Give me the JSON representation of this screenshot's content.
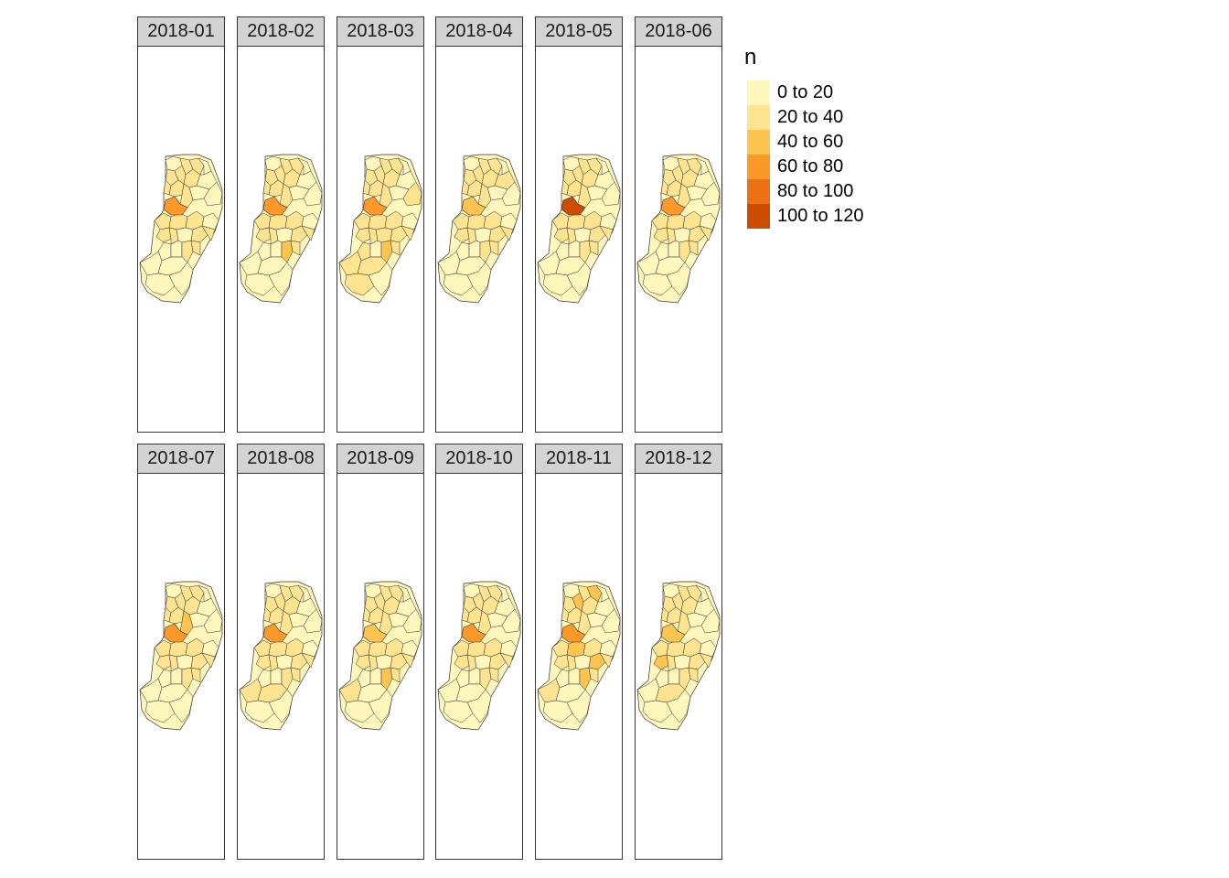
{
  "legend": {
    "title": "n",
    "classes": [
      {
        "label": "0 to 20",
        "color": "#FFF7BC"
      },
      {
        "label": "20 to 40",
        "color": "#FEE391"
      },
      {
        "label": "40 to 60",
        "color": "#FEC44F"
      },
      {
        "label": "60 to 80",
        "color": "#FE9929"
      },
      {
        "label": "80 to 100",
        "color": "#EC7014"
      },
      {
        "label": "100 to 120",
        "color": "#CC4C02"
      }
    ]
  },
  "panels": [
    {
      "label": "2018-01",
      "central_class": 3,
      "others": [
        0,
        1,
        1,
        0,
        1,
        1,
        1,
        0,
        1,
        1,
        0,
        1,
        0,
        1,
        1,
        1,
        0,
        1,
        1,
        0,
        1,
        1,
        0,
        0,
        1,
        1,
        0,
        0,
        0,
        0
      ]
    },
    {
      "label": "2018-02",
      "central_class": 3,
      "others": [
        0,
        1,
        1,
        0,
        1,
        1,
        1,
        0,
        1,
        1,
        0,
        1,
        0,
        1,
        1,
        1,
        0,
        1,
        1,
        0,
        1,
        1,
        0,
        0,
        2,
        1,
        0,
        0,
        0,
        0
      ]
    },
    {
      "label": "2018-03",
      "central_class": 3,
      "others": [
        0,
        1,
        1,
        0,
        1,
        1,
        1,
        0,
        1,
        1,
        0,
        1,
        1,
        1,
        1,
        1,
        0,
        1,
        1,
        1,
        1,
        1,
        1,
        0,
        2,
        1,
        1,
        1,
        1,
        0
      ]
    },
    {
      "label": "2018-04",
      "central_class": 2,
      "others": [
        0,
        1,
        1,
        0,
        1,
        1,
        1,
        1,
        1,
        1,
        0,
        1,
        0,
        1,
        1,
        1,
        0,
        1,
        1,
        0,
        1,
        1,
        0,
        0,
        1,
        1,
        0,
        0,
        0,
        0
      ]
    },
    {
      "label": "2018-05",
      "central_class": 5,
      "others": [
        0,
        1,
        1,
        0,
        1,
        1,
        1,
        0,
        1,
        1,
        0,
        1,
        0,
        1,
        1,
        1,
        0,
        1,
        1,
        0,
        1,
        1,
        0,
        0,
        1,
        1,
        0,
        0,
        0,
        0
      ]
    },
    {
      "label": "2018-06",
      "central_class": 3,
      "others": [
        0,
        1,
        1,
        0,
        1,
        1,
        1,
        0,
        1,
        1,
        0,
        1,
        0,
        1,
        1,
        1,
        0,
        1,
        1,
        0,
        1,
        1,
        0,
        0,
        1,
        1,
        0,
        0,
        0,
        0
      ]
    },
    {
      "label": "2018-07",
      "central_class": 3,
      "others": [
        0,
        1,
        1,
        0,
        1,
        1,
        1,
        0,
        1,
        1,
        0,
        2,
        0,
        1,
        1,
        1,
        0,
        1,
        1,
        0,
        1,
        1,
        0,
        0,
        1,
        1,
        0,
        0,
        0,
        0
      ]
    },
    {
      "label": "2018-08",
      "central_class": 3,
      "others": [
        0,
        1,
        1,
        0,
        1,
        1,
        1,
        0,
        1,
        1,
        0,
        1,
        0,
        1,
        1,
        1,
        0,
        1,
        1,
        0,
        1,
        1,
        0,
        0,
        1,
        1,
        1,
        1,
        0,
        0
      ]
    },
    {
      "label": "2018-09",
      "central_class": 2,
      "others": [
        0,
        1,
        1,
        0,
        1,
        1,
        1,
        0,
        1,
        1,
        0,
        1,
        0,
        1,
        1,
        1,
        0,
        1,
        1,
        0,
        1,
        1,
        0,
        0,
        2,
        1,
        1,
        0,
        0,
        0
      ]
    },
    {
      "label": "2018-10",
      "central_class": 3,
      "others": [
        0,
        1,
        1,
        0,
        1,
        1,
        1,
        0,
        1,
        1,
        0,
        1,
        0,
        1,
        1,
        1,
        0,
        1,
        1,
        0,
        1,
        1,
        0,
        0,
        1,
        1,
        0,
        0,
        0,
        0
      ]
    },
    {
      "label": "2018-11",
      "central_class": 3,
      "others": [
        0,
        1,
        2,
        0,
        1,
        2,
        1,
        0,
        1,
        1,
        0,
        1,
        0,
        1,
        2,
        1,
        0,
        1,
        1,
        0,
        2,
        1,
        0,
        0,
        2,
        1,
        1,
        0,
        0,
        0
      ]
    },
    {
      "label": "2018-12",
      "central_class": 2,
      "others": [
        0,
        1,
        1,
        0,
        1,
        1,
        1,
        0,
        1,
        1,
        0,
        1,
        0,
        1,
        1,
        1,
        0,
        2,
        1,
        0,
        1,
        1,
        0,
        0,
        1,
        1,
        0,
        1,
        0,
        0
      ]
    }
  ]
}
